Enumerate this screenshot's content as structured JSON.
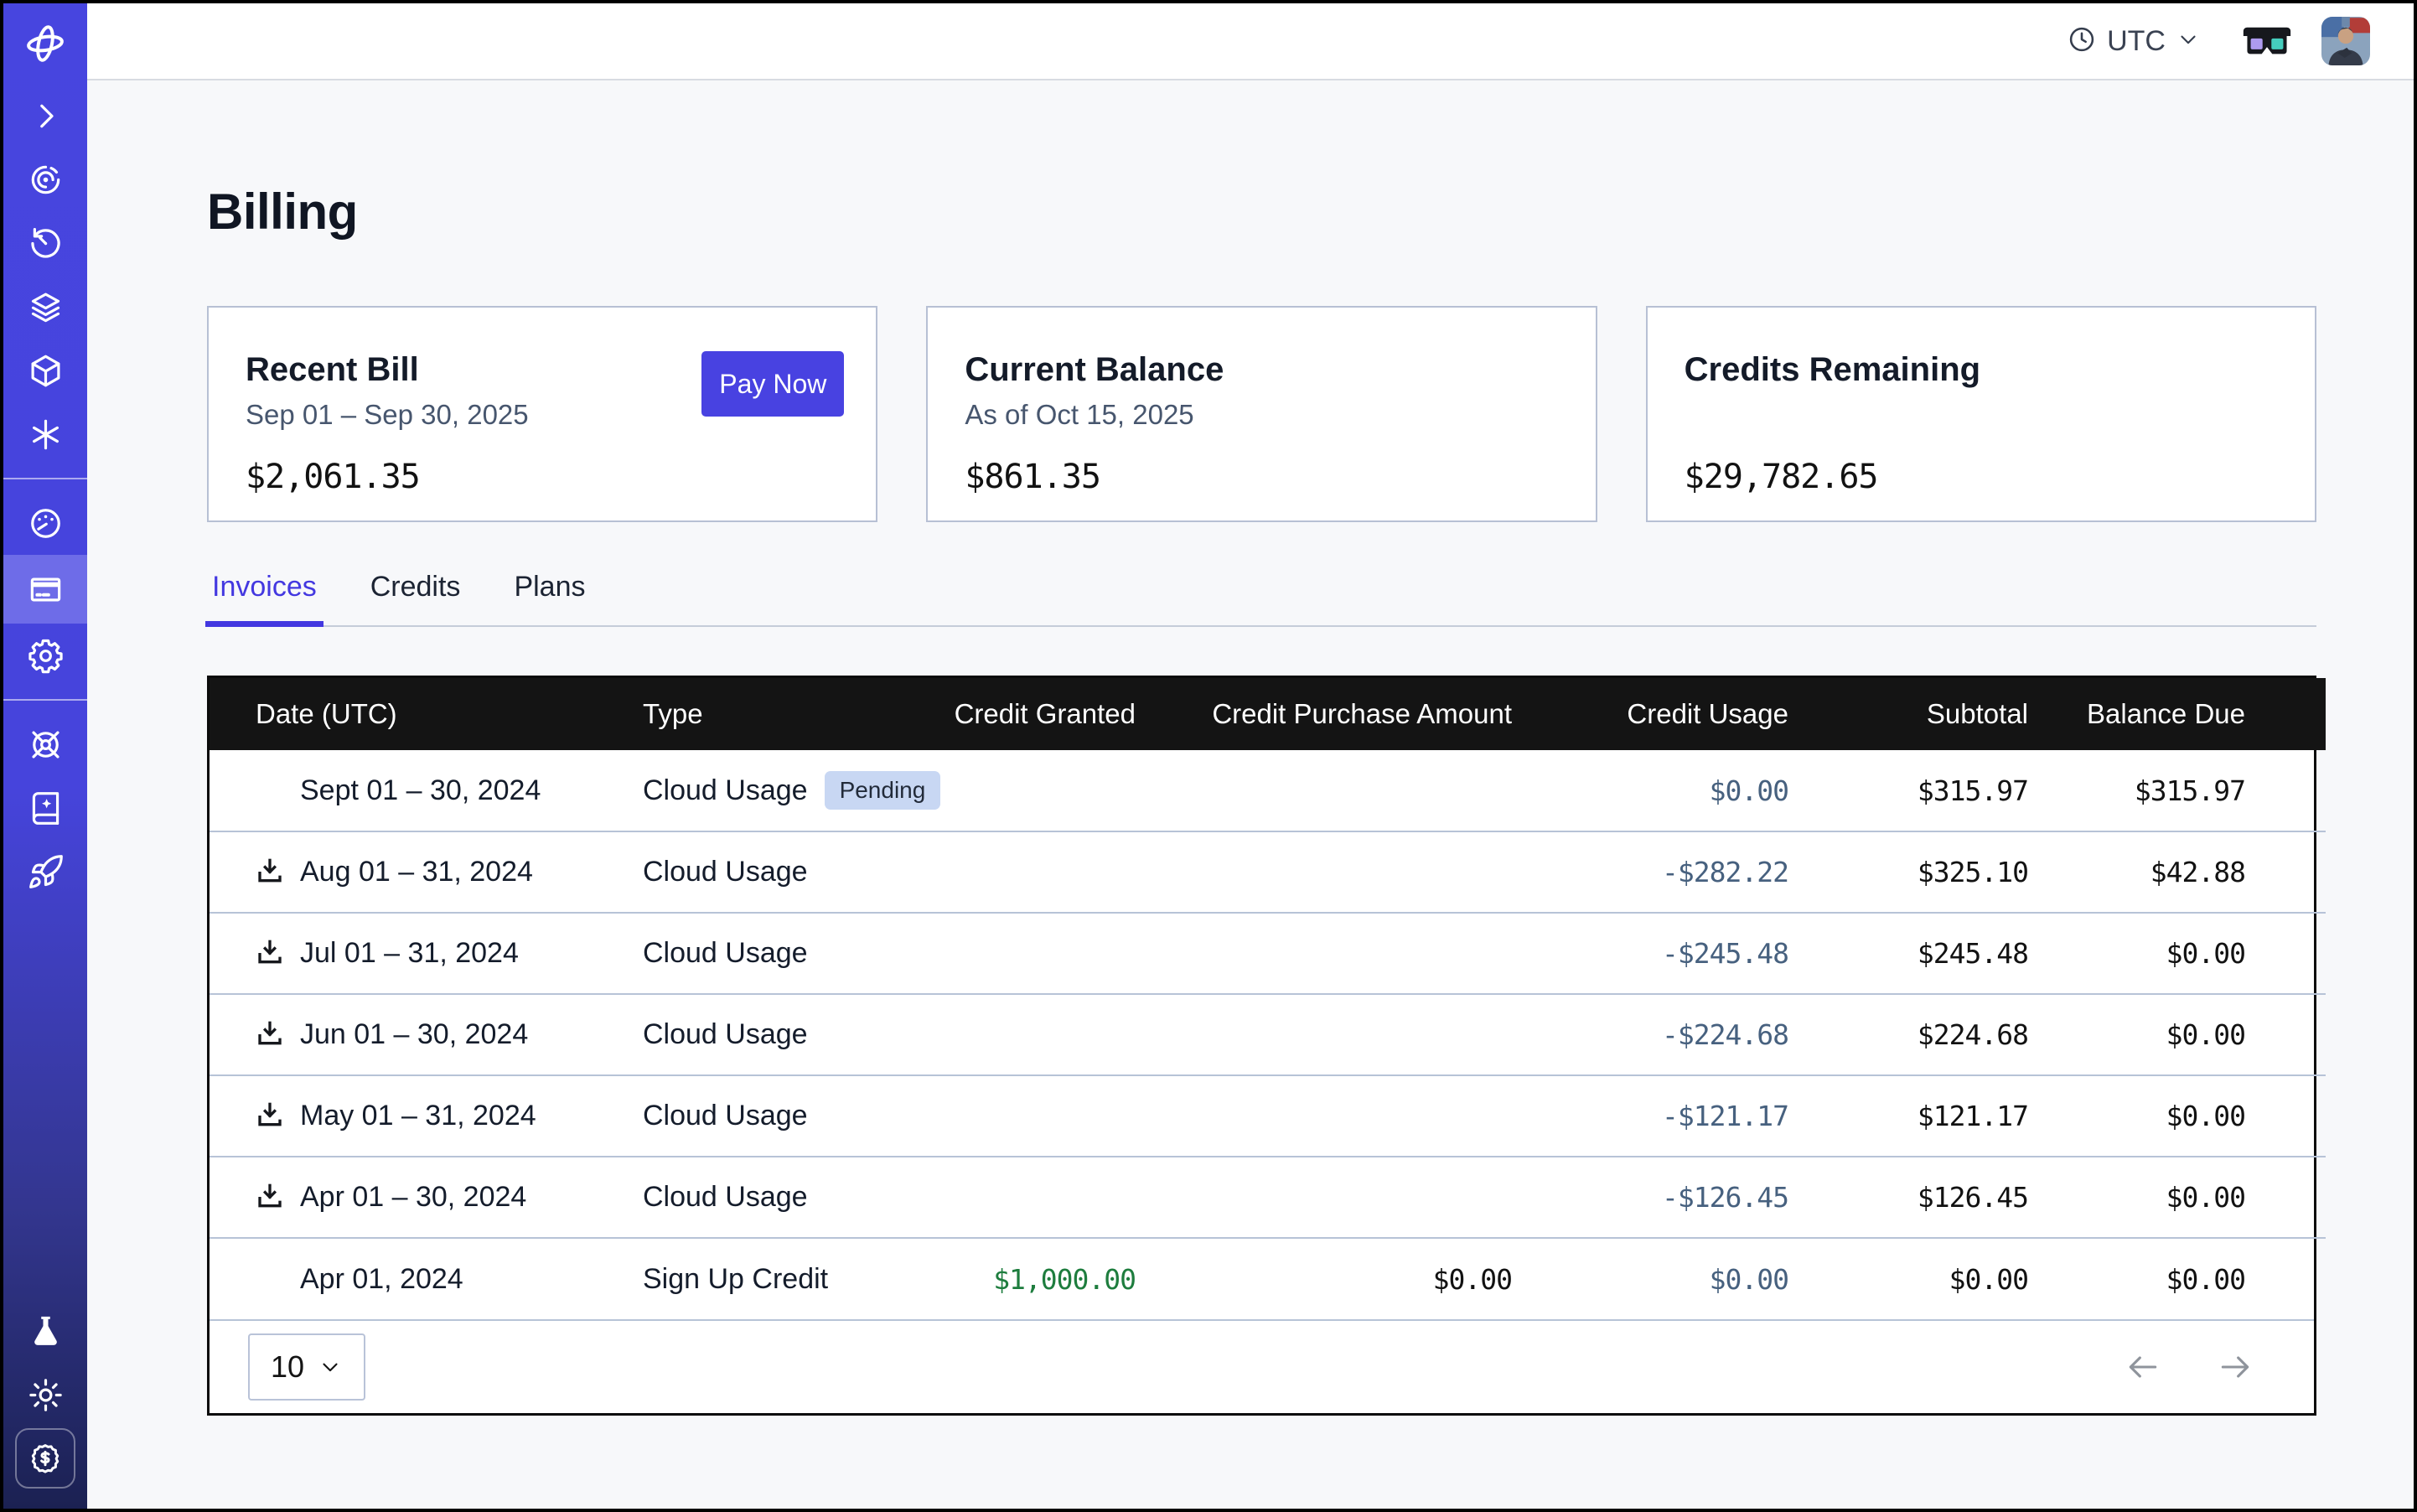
{
  "page": {
    "title": "Billing"
  },
  "header": {
    "timezone": "UTC",
    "icons": [
      "clock-icon",
      "chevron-down-icon",
      "3d-glasses-icon",
      "avatar",
      "chevron-down-icon"
    ]
  },
  "sidebar": {
    "logo_icon": "orbit-logo-icon",
    "groups": [
      {
        "items": [
          {
            "icon": "chevron-right-icon"
          },
          {
            "icon": "spiral-icon"
          },
          {
            "icon": "history-icon"
          },
          {
            "icon": "layers-icon"
          },
          {
            "icon": "cube-icon"
          },
          {
            "icon": "asterisk-icon"
          }
        ]
      },
      {
        "items": [
          {
            "icon": "gauge-icon"
          },
          {
            "icon": "billing-card-icon",
            "active": true
          },
          {
            "icon": "gear-icon"
          }
        ]
      },
      {
        "items": [
          {
            "icon": "helm-icon"
          },
          {
            "icon": "book-sparkle-icon"
          },
          {
            "icon": "rocket-icon"
          }
        ]
      }
    ],
    "bottom_items": [
      {
        "icon": "flask-icon"
      },
      {
        "icon": "sun-icon"
      },
      {
        "icon": "dollar-badge-icon",
        "boxed": true
      }
    ]
  },
  "cards": [
    {
      "title": "Recent Bill",
      "subtitle": "Sep 01 – Sep 30, 2025",
      "amount": "$2,061.35",
      "action_label": "Pay Now"
    },
    {
      "title": "Current Balance",
      "subtitle": "As of Oct 15, 2025",
      "amount": "$861.35"
    },
    {
      "title": "Credits Remaining",
      "subtitle": "",
      "amount": "$29,782.65"
    }
  ],
  "tabs": [
    {
      "label": "Invoices",
      "active": true
    },
    {
      "label": "Credits",
      "active": false
    },
    {
      "label": "Plans",
      "active": false
    }
  ],
  "table": {
    "columns": [
      "Date (UTC)",
      "Type",
      "Credit Granted",
      "Credit Purchase Amount",
      "Credit Usage",
      "Subtotal",
      "Balance Due"
    ],
    "rows": [
      {
        "date": "Sept 01 – 30, 2024",
        "downloadable": false,
        "type": "Cloud Usage",
        "badge": "Pending",
        "credit_granted": "",
        "credit_purchase": "",
        "credit_usage": "$0.00",
        "subtotal": "$315.97",
        "balance_due": "$315.97"
      },
      {
        "date": "Aug 01 – 31, 2024",
        "downloadable": true,
        "type": "Cloud Usage",
        "badge": "",
        "credit_granted": "",
        "credit_purchase": "",
        "credit_usage": "-$282.22",
        "subtotal": "$325.10",
        "balance_due": "$42.88"
      },
      {
        "date": "Jul 01 – 31, 2024",
        "downloadable": true,
        "type": "Cloud Usage",
        "badge": "",
        "credit_granted": "",
        "credit_purchase": "",
        "credit_usage": "-$245.48",
        "subtotal": "$245.48",
        "balance_due": "$0.00"
      },
      {
        "date": "Jun 01 – 30, 2024",
        "downloadable": true,
        "type": "Cloud Usage",
        "badge": "",
        "credit_granted": "",
        "credit_purchase": "",
        "credit_usage": "-$224.68",
        "subtotal": "$224.68",
        "balance_due": "$0.00"
      },
      {
        "date": "May 01 – 31, 2024",
        "downloadable": true,
        "type": "Cloud Usage",
        "badge": "",
        "credit_granted": "",
        "credit_purchase": "",
        "credit_usage": "-$121.17",
        "subtotal": "$121.17",
        "balance_due": "$0.00"
      },
      {
        "date": "Apr 01 – 30, 2024",
        "downloadable": true,
        "type": "Cloud Usage",
        "badge": "",
        "credit_granted": "",
        "credit_purchase": "",
        "credit_usage": "-$126.45",
        "subtotal": "$126.45",
        "balance_due": "$0.00"
      },
      {
        "date": "Apr 01, 2024",
        "downloadable": false,
        "type": "Sign Up Credit",
        "badge": "",
        "credit_granted": "$1,000.00",
        "credit_purchase": "$0.00",
        "credit_usage": "$0.00",
        "subtotal": "$0.00",
        "balance_due": "$0.00"
      }
    ],
    "pagination": {
      "page_size": "10"
    }
  },
  "colors": {
    "accent": "#4338e0",
    "pay_now_button": "#4842e1",
    "sidebar_top": "#4745df",
    "sidebar_bottom": "#1b2152",
    "sidebar_active": "#6e6ce8",
    "table_header_bg": "#141414",
    "row_divider": "#b7c3d7",
    "credit_usage_text": "#47617f",
    "credit_granted_green": "#1e7d3e",
    "badge_bg": "#c8d7f3",
    "glasses_left_lens": "#ae9bef",
    "glasses_right_lens": "#45cdbd"
  }
}
